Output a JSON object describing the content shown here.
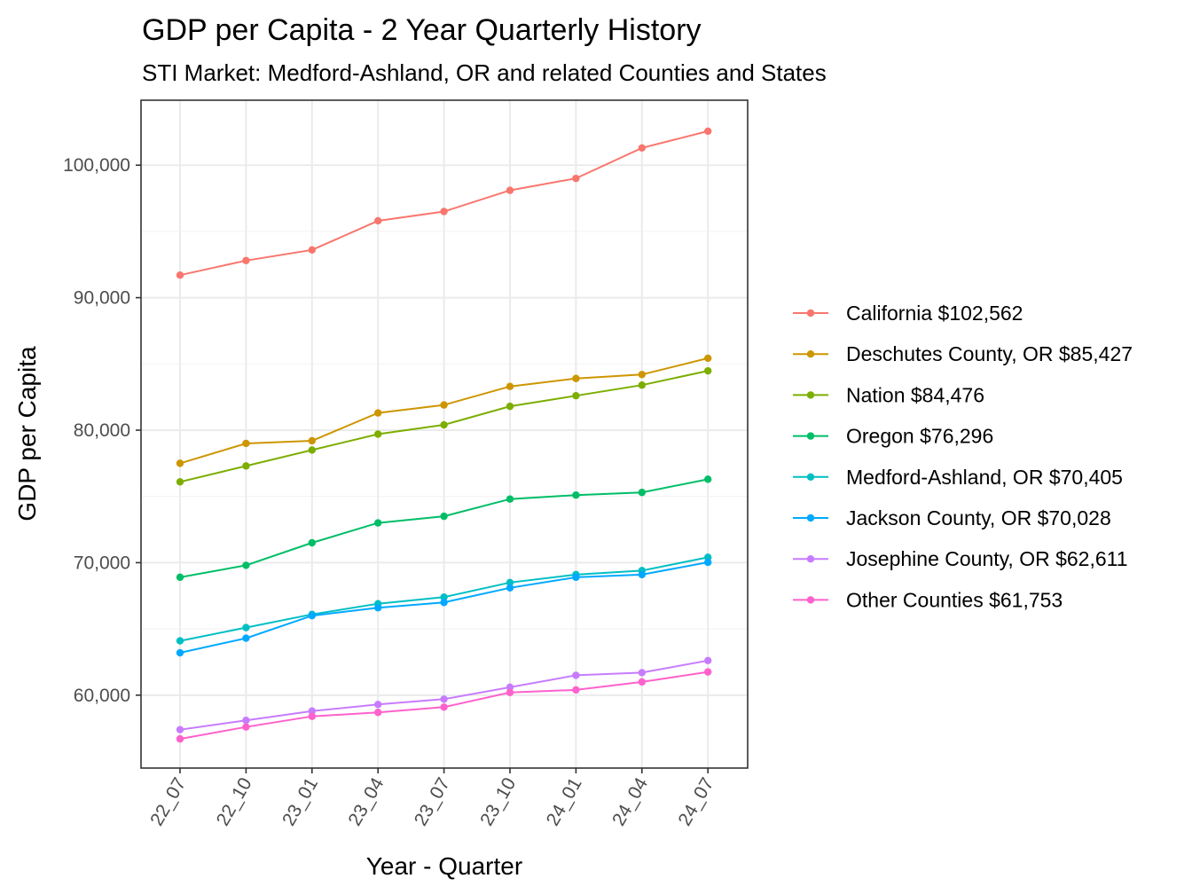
{
  "chart_data": {
    "type": "line",
    "title": "GDP per Capita - 2 Year Quarterly History",
    "subtitle": "STI Market: Medford-Ashland, OR and related Counties and States",
    "xlabel": "Year - Quarter",
    "ylabel": "GDP per Capita",
    "categories": [
      "22_07",
      "22_10",
      "23_01",
      "23_04",
      "23_07",
      "23_10",
      "24_01",
      "24_04",
      "24_07"
    ],
    "ylim": [
      54500,
      104900
    ],
    "yticks": [
      60000,
      70000,
      80000,
      90000,
      100000
    ],
    "ytick_labels": [
      "60,000",
      "70,000",
      "80,000",
      "90,000",
      "100,000"
    ],
    "grid": true,
    "legend_position": "right",
    "series": [
      {
        "name": "California $102,562",
        "color": "#F8766D",
        "values": [
          91700,
          92800,
          93600,
          95800,
          96500,
          98100,
          99000,
          101300,
          102562
        ]
      },
      {
        "name": "Deschutes County, OR $85,427",
        "color": "#CD9600",
        "values": [
          77500,
          79000,
          79200,
          81300,
          81900,
          83300,
          83900,
          84200,
          85427
        ]
      },
      {
        "name": "Nation $84,476",
        "color": "#7CAE00",
        "values": [
          76100,
          77300,
          78500,
          79700,
          80400,
          81800,
          82600,
          83400,
          84476
        ]
      },
      {
        "name": "Oregon $76,296",
        "color": "#00BE67",
        "values": [
          68900,
          69800,
          71500,
          73000,
          73500,
          74800,
          75100,
          75300,
          76296
        ]
      },
      {
        "name": "Medford-Ashland, OR $70,405",
        "color": "#00BFC4",
        "values": [
          64100,
          65100,
          66100,
          66900,
          67400,
          68500,
          69100,
          69400,
          70405
        ]
      },
      {
        "name": "Jackson County, OR $70,028",
        "color": "#00A9FF",
        "values": [
          63200,
          64300,
          66000,
          66600,
          67000,
          68100,
          68900,
          69100,
          70028
        ]
      },
      {
        "name": "Josephine County, OR $62,611",
        "color": "#C77CFF",
        "values": [
          57400,
          58100,
          58800,
          59300,
          59700,
          60600,
          61500,
          61700,
          62611
        ]
      },
      {
        "name": "Other Counties $61,753",
        "color": "#FF61CC",
        "values": [
          56700,
          57600,
          58400,
          58700,
          59100,
          60200,
          60400,
          61000,
          61753
        ]
      }
    ]
  }
}
